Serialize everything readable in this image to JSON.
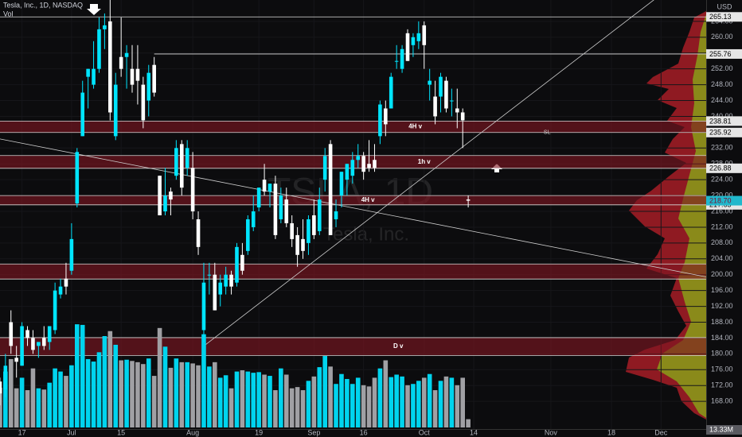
{
  "chart_data": {
    "type": "candlestick",
    "title": "Tesla, Inc., 1D, NASDAQ",
    "volume_title": "Vol",
    "currency": "USD",
    "watermark": "TSLA, 1D",
    "watermark_sub": "Tesla, Inc.",
    "up_color": "#00e5ff",
    "down_color": "#ffffff",
    "volume_up_color": "#00d4ee",
    "volume_down_color": "#a0a0a4",
    "ylim": [
      161,
      269.4
    ],
    "yticks": [
      {
        "value": 168,
        "label": "168.00"
      },
      {
        "value": 172,
        "label": "172.00"
      },
      {
        "value": 176,
        "label": "176.00"
      },
      {
        "value": 180,
        "label": "180.00"
      },
      {
        "value": 184,
        "label": "184.00"
      },
      {
        "value": 188,
        "label": "188.00"
      },
      {
        "value": 192,
        "label": "192.00"
      },
      {
        "value": 196,
        "label": "196.00"
      },
      {
        "value": 200,
        "label": "200.00"
      },
      {
        "value": 204,
        "label": "204.00"
      },
      {
        "value": 208,
        "label": "208.00"
      },
      {
        "value": 212,
        "label": "212.00"
      },
      {
        "value": 216,
        "label": "216.00"
      },
      {
        "value": 220,
        "label": "220.00"
      },
      {
        "value": 224,
        "label": "224.00"
      },
      {
        "value": 228,
        "label": "228.00"
      },
      {
        "value": 232,
        "label": "232.00"
      },
      {
        "value": 236,
        "label": "236.00"
      },
      {
        "value": 240,
        "label": "240.00"
      },
      {
        "value": 244,
        "label": "244.00"
      },
      {
        "value": 248,
        "label": "248.00"
      },
      {
        "value": 252,
        "label": "252.00"
      },
      {
        "value": 256,
        "label": "256.00"
      },
      {
        "value": 260,
        "label": "260.00"
      },
      {
        "value": 264,
        "label": "264.00"
      }
    ],
    "xticks": [
      {
        "value": 5,
        "label": "17"
      },
      {
        "value": 14,
        "label": "Jul"
      },
      {
        "value": 23,
        "label": "15"
      },
      {
        "value": 36,
        "label": "Aug"
      },
      {
        "value": 48,
        "label": "19"
      },
      {
        "value": 58,
        "label": "Sep"
      },
      {
        "value": 67,
        "label": "16"
      },
      {
        "value": 78,
        "label": "Oct"
      },
      {
        "value": 87,
        "label": "14"
      },
      {
        "value": 101,
        "label": "Nov"
      },
      {
        "value": 112,
        "label": "18"
      },
      {
        "value": 121,
        "label": "Dec"
      }
    ],
    "open": [
      176,
      173,
      171,
      188,
      179,
      177,
      186,
      184,
      182,
      184,
      183,
      186,
      195,
      199,
      201,
      218,
      235,
      250,
      248,
      252,
      262,
      264,
      235,
      255,
      255,
      252,
      252,
      248,
      244,
      253,
      225,
      216,
      221,
      225,
      233,
      227,
      227,
      214,
      186,
      200,
      200,
      195,
      197,
      200,
      198,
      205,
      206,
      212,
      217,
      224,
      221,
      223,
      214,
      219,
      213,
      210,
      209,
      208,
      215,
      211,
      224,
      233,
      214,
      220,
      224,
      225,
      229,
      230,
      228,
      229,
      235,
      242,
      242,
      254,
      252,
      261,
      258,
      259,
      263,
      248,
      245,
      245,
      249,
      244,
      242,
      241,
      219
    ],
    "high": [
      178,
      174,
      180,
      191,
      182,
      188,
      187,
      186,
      183,
      187,
      187,
      198,
      199,
      203,
      213,
      232,
      249,
      252,
      259,
      265,
      266,
      271,
      251,
      265,
      258,
      258,
      258,
      250,
      253,
      255,
      225,
      227,
      222,
      234,
      234,
      234,
      231,
      216,
      203,
      203,
      203,
      200,
      202,
      201,
      208,
      208,
      215,
      220,
      222,
      228,
      223,
      225,
      222,
      222,
      215,
      212,
      214,
      215,
      219,
      222,
      232,
      234,
      219,
      226,
      228,
      231,
      233,
      231,
      234,
      233,
      244,
      244,
      251,
      258,
      258,
      262,
      261,
      264,
      264,
      252,
      249,
      251,
      250,
      247,
      247,
      242,
      220
    ],
    "low": [
      171,
      167,
      169,
      180,
      174,
      177,
      182,
      180,
      179,
      181,
      181,
      185,
      194,
      195,
      200,
      217,
      235,
      242,
      247,
      251,
      257,
      239,
      234,
      250,
      247,
      246,
      243,
      237,
      240,
      245,
      215,
      215,
      215,
      224,
      220,
      225,
      214,
      205,
      183,
      195,
      191,
      192,
      195,
      195,
      197,
      200,
      205,
      211,
      216,
      220,
      217,
      209,
      213,
      212,
      207,
      202,
      204,
      205,
      209,
      210,
      221,
      210,
      212,
      217,
      220,
      223,
      227,
      224,
      226,
      226,
      233,
      235,
      242,
      252,
      251,
      254,
      255,
      257,
      252,
      244,
      238,
      241,
      241,
      240,
      237,
      232,
      217
    ],
    "close": [
      173,
      170,
      177,
      182,
      178,
      187,
      184,
      181,
      183,
      182,
      187,
      196,
      197,
      197,
      209,
      231,
      246,
      252,
      252,
      262,
      263,
      241,
      248,
      252,
      256,
      248,
      249,
      239,
      251,
      246,
      215,
      220,
      219,
      232,
      222,
      232,
      216,
      207,
      198,
      200,
      191,
      198,
      200,
      197,
      207,
      201,
      214,
      216,
      222,
      221,
      223,
      210,
      220,
      213,
      209,
      205,
      206,
      214,
      210,
      219,
      230,
      210,
      216,
      226,
      228,
      229,
      230,
      226,
      227,
      227,
      243,
      238,
      250,
      254,
      257,
      254,
      260,
      261,
      258,
      249,
      240,
      250,
      242,
      244,
      241,
      239,
      218.7
    ],
    "last_price_label": "218.70",
    "volume": {
      "vlim": [
        0,
        170
      ],
      "last_label": "13.33M",
      "values": [
        64,
        64,
        90,
        110,
        63,
        80,
        60,
        95,
        63,
        61,
        72,
        95,
        90,
        83,
        100,
        166,
        165,
        110,
        106,
        121,
        147,
        155,
        133,
        108,
        109,
        107,
        105,
        102,
        111,
        83,
        160,
        130,
        96,
        111,
        105,
        105,
        103,
        100,
        150,
        98,
        105,
        80,
        84,
        63,
        90,
        92,
        90,
        88,
        89,
        85,
        83,
        60,
        95,
        85,
        63,
        65,
        60,
        75,
        82,
        97,
        115,
        98,
        70,
        86,
        78,
        70,
        80,
        68,
        66,
        80,
        95,
        108,
        81,
        85,
        82,
        68,
        70,
        75,
        80,
        86,
        60,
        75,
        82,
        80,
        68,
        80,
        13.33
      ]
    },
    "levels": [
      {
        "value": 265.13,
        "label": "265.13",
        "from": -2
      },
      {
        "value": 255.76,
        "label": "255.76",
        "from": 29
      }
    ],
    "zones": [
      {
        "low": 235.92,
        "high": 238.81,
        "low_label": "235.92",
        "high_label": "238.81",
        "label": "4H v",
        "label_x": 76.4
      },
      {
        "low": 226.88,
        "high": 230.1,
        "low_label": "226.88",
        "label": "1h v",
        "label_x": 78
      },
      {
        "low": 217.65,
        "high": 220.0,
        "low_label": "217.65",
        "label": "4H v",
        "label_x": 67.8
      },
      {
        "low": 198.9,
        "high": 202.7
      },
      {
        "low": 179.6,
        "high": 184.1,
        "label": "D v",
        "label_x": 73.3
      }
    ],
    "trendlines": [
      {
        "x": [
          38.3,
          102.2
        ],
        "y": [
          182.3,
          250.7
        ]
      },
      {
        "x": [
          1,
          125.3
        ],
        "y": [
          234.3,
          200.5
        ]
      }
    ],
    "annotations": [
      {
        "text": "SL",
        "x": 99.7,
        "y": 235.9
      }
    ]
  }
}
